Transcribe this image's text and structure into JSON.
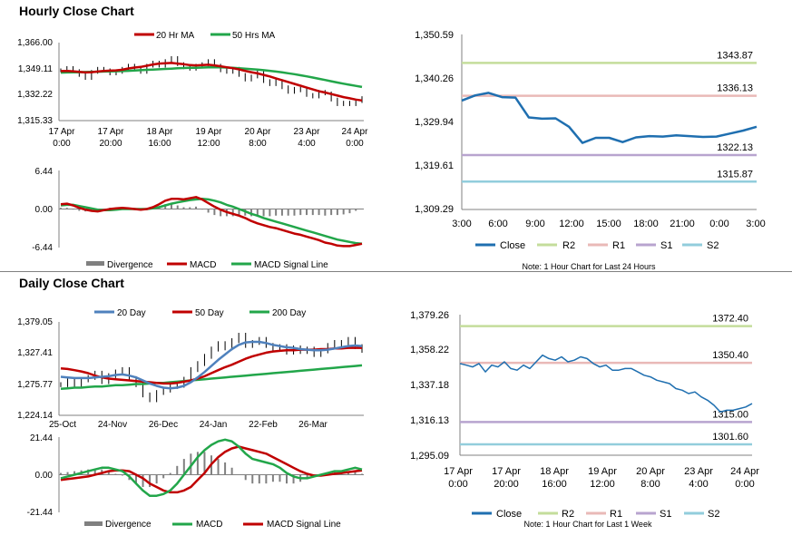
{
  "hourly_title": "Hourly Close Chart",
  "daily_title": "Daily Close Chart",
  "colors": {
    "red": "#c00000",
    "green": "#22a64a",
    "blue": "#4f81bd",
    "dark_blue": "#1f6fb0",
    "gray": "#808080",
    "r2": "#c4dd9b",
    "r1": "#e9b9b7",
    "s1": "#b8a4cf",
    "s2": "#92cddc"
  },
  "chart_data": [
    {
      "id": "hourly-price",
      "type": "line",
      "legend": [
        "20 Hr MA",
        "50 Hrs MA"
      ],
      "y_ticks": [
        "1,366.00",
        "1,349.11",
        "1,332.22",
        "1,315.33"
      ],
      "ylim": [
        1315.33,
        1366.0
      ],
      "x_ticks": [
        [
          "17 Apr",
          "0:00"
        ],
        [
          "17 Apr",
          "20:00"
        ],
        [
          "18 Apr",
          "16:00"
        ],
        [
          "19 Apr",
          "12:00"
        ],
        [
          "20 Apr",
          "8:00"
        ],
        [
          "23 Apr",
          "4:00"
        ],
        [
          "24 Apr",
          "0:00"
        ]
      ],
      "series": [
        {
          "name": "Close",
          "values": [
            1348,
            1349.5,
            1347.5,
            1345,
            1343,
            1347,
            1349,
            1348,
            1346,
            1347,
            1349,
            1351,
            1349,
            1347,
            1351,
            1353,
            1351,
            1354,
            1356,
            1352,
            1350,
            1349,
            1351,
            1352,
            1354,
            1351,
            1348,
            1347,
            1349,
            1345,
            1342,
            1344,
            1347,
            1341,
            1339,
            1341,
            1337,
            1334,
            1336,
            1335,
            1332,
            1331,
            1334,
            1333,
            1329,
            1326,
            1327,
            1326,
            1328,
            1330
          ]
        },
        {
          "name": "20 Hr MA",
          "values": [
            1347.5,
            1347.6,
            1347.4,
            1347,
            1346.6,
            1346.8,
            1347.2,
            1347.6,
            1347.8,
            1348,
            1348.4,
            1349.2,
            1349.8,
            1350.2,
            1351,
            1351.8,
            1352.4,
            1352.6,
            1352.8,
            1352.4,
            1352,
            1351.4,
            1351.2,
            1351.4,
            1351.6,
            1351.2,
            1350.6,
            1350,
            1349.4,
            1348.6,
            1347.6,
            1346.8,
            1346,
            1345,
            1344,
            1342.8,
            1341.6,
            1340.4,
            1339.2,
            1338,
            1336.8,
            1335.6,
            1334.4,
            1333.6,
            1332.6,
            1331.6,
            1330.6,
            1329.8,
            1329,
            1328.4
          ]
        },
        {
          "name": "50 Hrs MA",
          "values": [
            1346.5,
            1346.6,
            1346.7,
            1346.8,
            1346.9,
            1347,
            1347.1,
            1347.2,
            1347.3,
            1347.4,
            1347.5,
            1347.7,
            1347.9,
            1348.1,
            1348.3,
            1348.5,
            1348.7,
            1348.9,
            1349.1,
            1349.3,
            1349.5,
            1349.6,
            1349.7,
            1349.8,
            1349.9,
            1350,
            1349.9,
            1349.8,
            1349.6,
            1349.4,
            1349.1,
            1348.8,
            1348.5,
            1348.1,
            1347.7,
            1347.2,
            1346.7,
            1346.1,
            1345.5,
            1344.8,
            1344.1,
            1343.3,
            1342.5,
            1341.7,
            1340.9,
            1340.1,
            1339.3,
            1338.6,
            1337.9,
            1337.2
          ]
        }
      ]
    },
    {
      "id": "hourly-macd",
      "type": "line",
      "legend": [
        "Divergence",
        "MACD",
        "MACD Signal Line"
      ],
      "y_ticks": [
        "6.44",
        "0.00",
        "-6.44"
      ],
      "ylim": [
        -6.44,
        6.44
      ],
      "series": [
        {
          "name": "MACD",
          "values": [
            0.8,
            0.9,
            0.6,
            0.2,
            -0.1,
            -0.3,
            -0.4,
            -0.2,
            0.0,
            0.1,
            0.2,
            0.1,
            0.0,
            -0.1,
            0.0,
            0.3,
            0.8,
            1.4,
            1.7,
            1.7,
            1.6,
            1.8,
            2.0,
            1.6,
            1.0,
            0.4,
            -0.1,
            -0.5,
            -0.8,
            -1.1,
            -1.5,
            -2.0,
            -2.4,
            -2.7,
            -3.0,
            -3.2,
            -3.5,
            -3.8,
            -4.1,
            -4.3,
            -4.6,
            -4.9,
            -5.2,
            -5.6,
            -5.8,
            -6.1,
            -6.2,
            -6.2,
            -6.0,
            -5.8
          ]
        },
        {
          "name": "MACD Signal Line",
          "values": [
            0.6,
            0.7,
            0.7,
            0.5,
            0.3,
            0.1,
            -0.1,
            -0.2,
            -0.2,
            -0.1,
            0.0,
            0.0,
            0.0,
            0.0,
            0.0,
            0.1,
            0.3,
            0.6,
            0.9,
            1.1,
            1.3,
            1.5,
            1.6,
            1.7,
            1.6,
            1.4,
            1.1,
            0.7,
            0.4,
            0.0,
            -0.4,
            -0.8,
            -1.1,
            -1.5,
            -1.8,
            -2.1,
            -2.4,
            -2.7,
            -3.0,
            -3.3,
            -3.6,
            -3.9,
            -4.2,
            -4.5,
            -4.8,
            -5.1,
            -5.3,
            -5.5,
            -5.7,
            -5.8
          ]
        },
        {
          "name": "Divergence",
          "values": [
            0.2,
            0.2,
            -0.1,
            -0.3,
            -0.4,
            -0.4,
            -0.3,
            0.0,
            0.2,
            0.2,
            0.2,
            0.1,
            0.0,
            -0.1,
            0.0,
            0.2,
            0.5,
            0.8,
            0.8,
            0.6,
            0.3,
            0.3,
            0.4,
            -0.1,
            -0.6,
            -1.0,
            -1.2,
            -1.2,
            -1.2,
            -1.1,
            -1.1,
            -1.2,
            -1.3,
            -1.2,
            -1.2,
            -1.1,
            -1.1,
            -1.1,
            -1.1,
            -1.0,
            -1.0,
            -1.0,
            -1.0,
            -1.1,
            -1.0,
            -1.0,
            -0.9,
            -0.7,
            -0.3,
            0.0
          ]
        }
      ]
    },
    {
      "id": "hourly-levels",
      "type": "line",
      "y_ticks": [
        "1,350.59",
        "1,340.26",
        "1,329.94",
        "1,319.61",
        "1,309.29"
      ],
      "ylim": [
        1309.29,
        1350.59
      ],
      "x_ticks": [
        "3:00",
        "6:00",
        "9:00",
        "12:00",
        "15:00",
        "18:00",
        "21:00",
        "0:00",
        "3:00"
      ],
      "levels": [
        {
          "name": "R2",
          "value": 1343.87,
          "label": "1343.87"
        },
        {
          "name": "R1",
          "value": 1336.13,
          "label": "1336.13"
        },
        {
          "name": "S1",
          "value": 1322.13,
          "label": "1322.13"
        },
        {
          "name": "S2",
          "value": 1315.87,
          "label": "1315.87"
        }
      ],
      "legend": [
        "Close",
        "R2",
        "R1",
        "S1",
        "S2"
      ],
      "note": "Note: 1 Hour Chart for Last 24 Hours",
      "series": [
        {
          "name": "Close",
          "values": [
            1335,
            1336.2,
            1336.8,
            1335.8,
            1335.7,
            1331,
            1330.7,
            1330.8,
            1328.8,
            1325,
            1326.2,
            1326.2,
            1325.2,
            1326.3,
            1326.6,
            1326.5,
            1326.8,
            1326.6,
            1326.4,
            1326.5,
            1327.2,
            1327.9,
            1328.8
          ]
        }
      ]
    },
    {
      "id": "daily-price",
      "type": "line",
      "legend": [
        "20 Day",
        "50 Day",
        "200 Day"
      ],
      "y_ticks": [
        "1,379.05",
        "1,327.41",
        "1,275.77",
        "1,224.14"
      ],
      "ylim": [
        1224.14,
        1379.05
      ],
      "x_ticks": [
        "25-Oct",
        "24-Nov",
        "26-Dec",
        "24-Jan",
        "22-Feb",
        "26-Mar"
      ],
      "series": [
        {
          "name": "Close",
          "values": [
            1275,
            1282,
            1274,
            1283,
            1287,
            1294,
            1280,
            1290,
            1296,
            1300,
            1285,
            1275,
            1258,
            1250,
            1262,
            1266,
            1272,
            1274,
            1284,
            1300,
            1310,
            1322,
            1334,
            1343,
            1336,
            1348,
            1357,
            1340,
            1345,
            1350,
            1340,
            1334,
            1338,
            1329,
            1336,
            1330,
            1334,
            1325,
            1331,
            1340,
            1345,
            1342,
            1350,
            1338,
            1332
          ]
        },
        {
          "name": "20 Day",
          "values": [
            1288,
            1287,
            1286,
            1286,
            1286,
            1287,
            1288,
            1289,
            1291,
            1292,
            1290,
            1287,
            1282,
            1277,
            1273,
            1270,
            1269,
            1270,
            1273,
            1279,
            1287,
            1296,
            1306,
            1316,
            1325,
            1334,
            1341,
            1345,
            1346,
            1346,
            1344,
            1341,
            1339,
            1337,
            1336,
            1334,
            1333,
            1332,
            1332,
            1333,
            1335,
            1337,
            1339,
            1340,
            1339
          ]
        },
        {
          "name": "50 Day",
          "values": [
            1302,
            1301,
            1299,
            1297,
            1294,
            1290,
            1287,
            1285,
            1284,
            1283,
            1282,
            1281,
            1280,
            1279,
            1278,
            1277,
            1277,
            1278,
            1280,
            1282,
            1285,
            1289,
            1294,
            1299,
            1304,
            1308,
            1313,
            1318,
            1322,
            1325,
            1328,
            1330,
            1331,
            1332,
            1332,
            1333,
            1333,
            1333,
            1334,
            1334,
            1335,
            1335,
            1336,
            1336,
            1336
          ]
        },
        {
          "name": "200 Day",
          "values": [
            1268,
            1269,
            1270,
            1270,
            1271,
            1272,
            1272,
            1273,
            1274,
            1274,
            1275,
            1276,
            1276,
            1277,
            1278,
            1278,
            1279,
            1280,
            1281,
            1282,
            1283,
            1284,
            1285,
            1286,
            1287,
            1288,
            1289,
            1290,
            1291,
            1292,
            1293,
            1294,
            1295,
            1296,
            1297,
            1298,
            1299,
            1300,
            1301,
            1302,
            1303,
            1304,
            1305,
            1306,
            1307
          ]
        }
      ]
    },
    {
      "id": "daily-macd",
      "type": "line",
      "legend": [
        "Divergence",
        "MACD",
        "MACD Signal Line"
      ],
      "y_ticks": [
        "21.44",
        "0.00",
        "-21.44"
      ],
      "ylim": [
        -21.44,
        21.44
      ],
      "series": [
        {
          "name": "MACD",
          "values": [
            -2,
            -1,
            0,
            1,
            2,
            3,
            4,
            4,
            3,
            2,
            -1,
            -5,
            -9,
            -12,
            -12,
            -11,
            -9,
            -5,
            0,
            5,
            10,
            14,
            17,
            19,
            20,
            19,
            16,
            12,
            9,
            8,
            7,
            6,
            4,
            1,
            -1,
            -2,
            -2,
            -1,
            0,
            1,
            2,
            2,
            3,
            4,
            3
          ]
        },
        {
          "name": "MACD Signal Line",
          "values": [
            -3,
            -2.5,
            -2,
            -1.5,
            -1,
            0,
            1,
            2,
            2.5,
            2.5,
            2,
            0,
            -2,
            -5,
            -7,
            -9,
            -10,
            -10,
            -9,
            -7,
            -3,
            1,
            6,
            10,
            13,
            15,
            16,
            15,
            14,
            13,
            12,
            10,
            8,
            6,
            4,
            2,
            0.5,
            -0.5,
            -0.5,
            0,
            0.5,
            1,
            1.5,
            2,
            2.5
          ]
        },
        {
          "name": "Divergence",
          "values": [
            1,
            1.5,
            2,
            2.5,
            3,
            3,
            3,
            2,
            0.5,
            -0.5,
            -3,
            -5,
            -7,
            -7,
            -5,
            -2,
            1,
            5,
            9,
            12,
            13,
            13,
            11,
            9,
            7,
            4,
            0,
            -3,
            -5,
            -5,
            -5,
            -4,
            -4,
            -5,
            -5,
            -4,
            -2.5,
            -0.5,
            0.5,
            1,
            1.5,
            1,
            1.5,
            2,
            0.5
          ]
        }
      ]
    },
    {
      "id": "daily-levels",
      "type": "line",
      "y_ticks": [
        "1,379.26",
        "1,358.22",
        "1,337.18",
        "1,316.13",
        "1,295.09"
      ],
      "ylim": [
        1295.09,
        1379.26
      ],
      "x_ticks": [
        [
          "17 Apr",
          "0:00"
        ],
        [
          "17 Apr",
          "20:00"
        ],
        [
          "18 Apr",
          "16:00"
        ],
        [
          "19 Apr",
          "12:00"
        ],
        [
          "20 Apr",
          "8:00"
        ],
        [
          "23 Apr",
          "4:00"
        ],
        [
          "24 Apr",
          "0:00"
        ]
      ],
      "levels": [
        {
          "name": "R2",
          "value": 1372.4,
          "label": "1372.40"
        },
        {
          "name": "R1",
          "value": 1350.4,
          "label": "1350.40"
        },
        {
          "name": "S1",
          "value": 1315.0,
          "label": "1315.00"
        },
        {
          "name": "S2",
          "value": 1301.6,
          "label": "1301.60"
        }
      ],
      "legend": [
        "Close",
        "R2",
        "R1",
        "S1",
        "S2"
      ],
      "note": "Note: 1 Hour Chart for Last 1 Week",
      "series": [
        {
          "name": "Close",
          "values": [
            1350,
            1349,
            1348,
            1350,
            1345,
            1349,
            1348,
            1351,
            1347,
            1346,
            1349,
            1347,
            1351,
            1355,
            1353,
            1352,
            1354,
            1351,
            1352,
            1354,
            1353,
            1350,
            1348,
            1349,
            1346,
            1346,
            1347,
            1347,
            1345,
            1343,
            1342,
            1340,
            1339,
            1338,
            1335,
            1334,
            1332,
            1333,
            1330,
            1328,
            1325,
            1321,
            1322,
            1322,
            1323,
            1324,
            1326
          ]
        }
      ]
    }
  ]
}
